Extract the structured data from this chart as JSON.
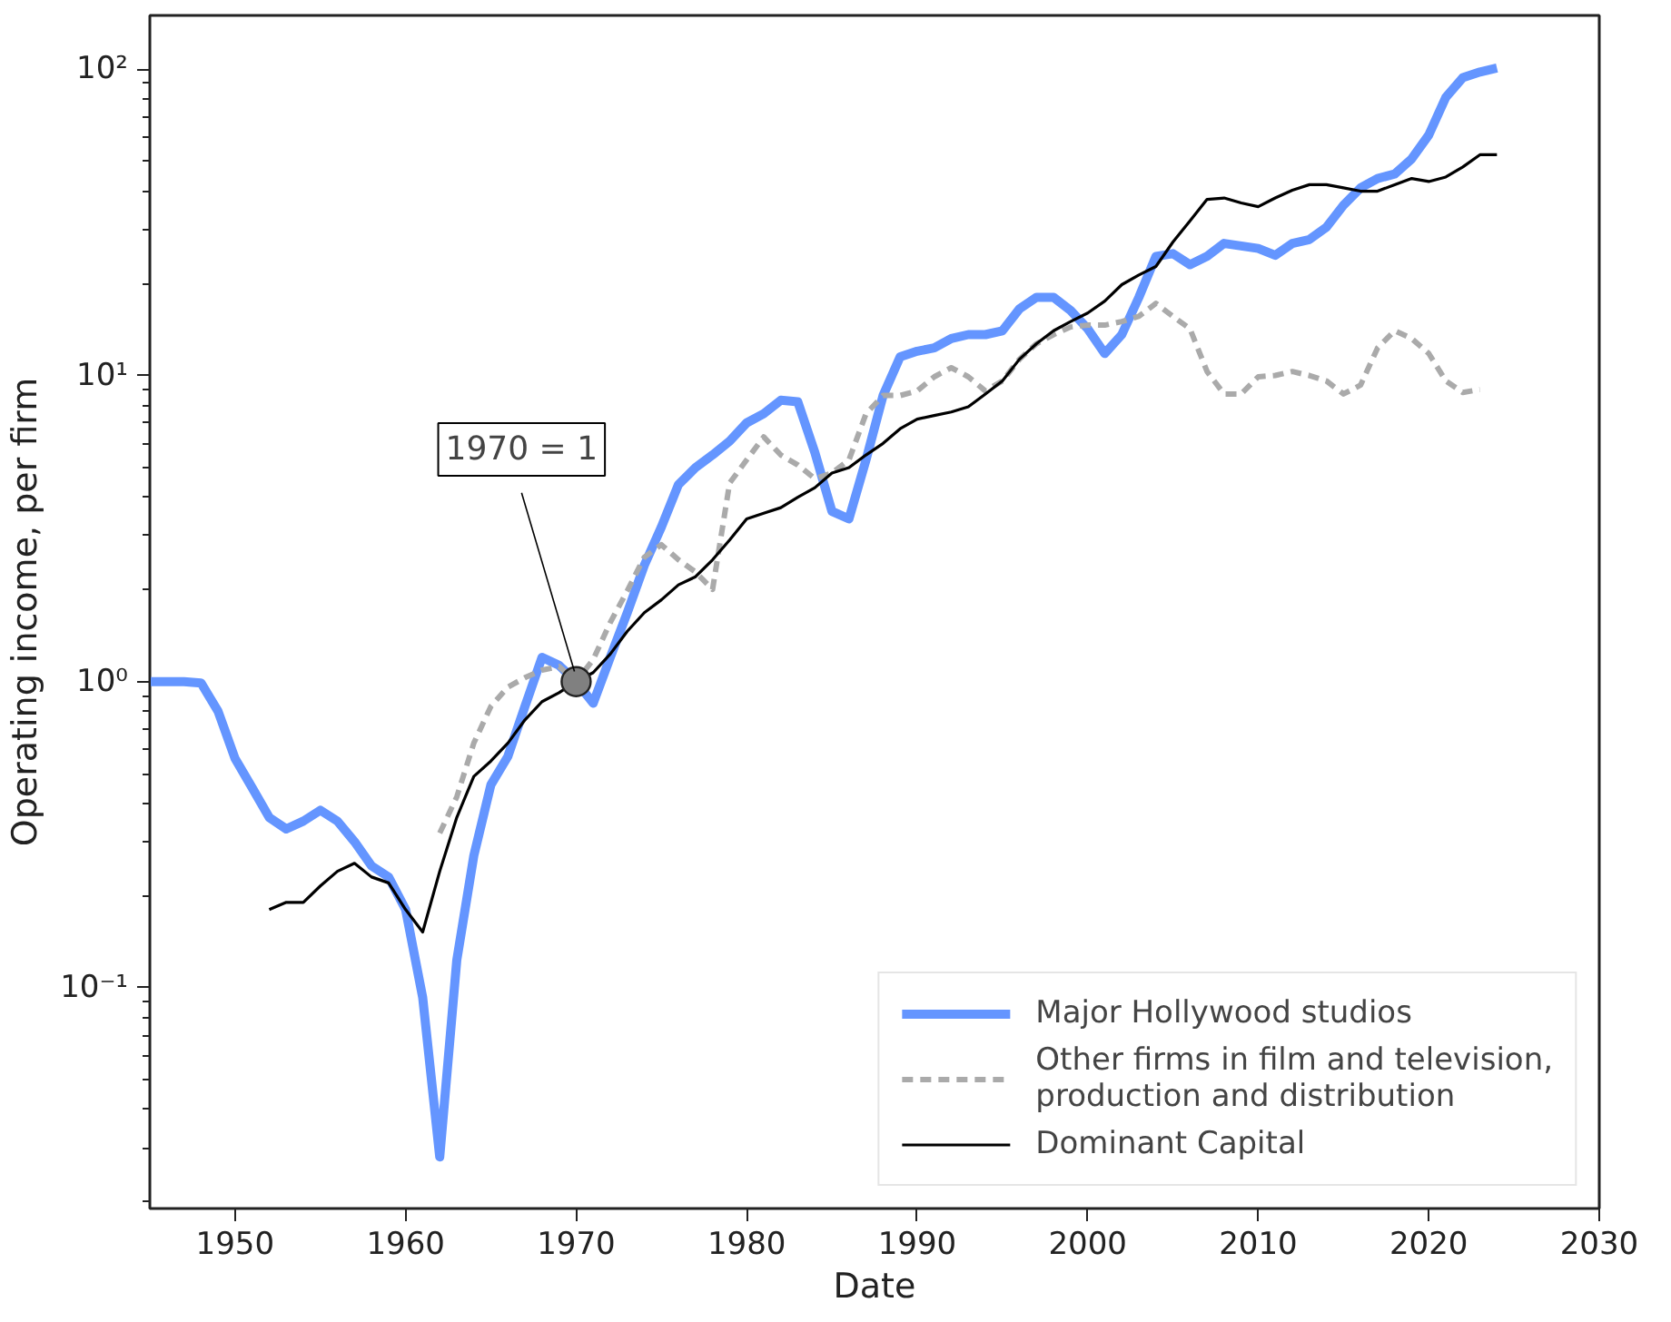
{
  "chart_data": {
    "type": "line",
    "xlabel": "Date",
    "ylabel": "Operating income, per firm",
    "log": true,
    "grid": false,
    "legend": "bottom right",
    "xlim": [
      1945,
      2030
    ],
    "xticks": [
      1950,
      1960,
      1970,
      1980,
      1990,
      2000,
      2010,
      2020,
      2030
    ],
    "ylim": [
      0.019,
      150
    ],
    "yticks": [
      {
        "value": 0.1,
        "label": "10⁻¹"
      },
      {
        "value": 1,
        "label": "10⁰"
      },
      {
        "value": 10,
        "label": "10¹"
      },
      {
        "value": 100,
        "label": "10²"
      }
    ],
    "annotations": [
      {
        "text": "1970 = 1",
        "x": 1970,
        "y": 1
      }
    ],
    "series": [
      {
        "name": "Major Hollywood studios",
        "color": "#6495ff",
        "line_style": "solid",
        "x": [
          1945,
          1946,
          1947,
          1948,
          1949,
          1950,
          1951,
          1952,
          1953,
          1954,
          1955,
          1956,
          1957,
          1958,
          1959,
          1960,
          1961,
          1962,
          1963,
          1964,
          1965,
          1966,
          1967,
          1968,
          1969,
          1970,
          1971,
          1972,
          1973,
          1974,
          1975,
          1976,
          1977,
          1978,
          1979,
          1980,
          1981,
          1982,
          1983,
          1984,
          1985,
          1986,
          1987,
          1988,
          1989,
          1990,
          1991,
          1992,
          1993,
          1994,
          1995,
          1996,
          1997,
          1998,
          1999,
          2000,
          2001,
          2002,
          2003,
          2004,
          2005,
          2006,
          2007,
          2008,
          2009,
          2010,
          2011,
          2012,
          2013,
          2014,
          2015,
          2016,
          2017,
          2018,
          2019,
          2020,
          2021,
          2022,
          2023,
          2024
        ],
        "values": [
          1.0,
          1.0,
          1.0,
          0.99,
          0.8,
          0.56,
          0.45,
          0.36,
          0.33,
          0.35,
          0.38,
          0.35,
          0.3,
          0.25,
          0.23,
          0.18,
          0.093,
          0.028,
          0.123,
          0.27,
          0.46,
          0.57,
          0.83,
          1.2,
          1.13,
          1.0,
          0.85,
          1.2,
          1.68,
          2.4,
          3.2,
          4.4,
          5.0,
          5.5,
          6.1,
          7.0,
          7.5,
          8.3,
          8.2,
          5.6,
          3.6,
          3.4,
          5.3,
          8.6,
          11.5,
          12,
          12.3,
          13.2,
          13.6,
          13.6,
          14,
          16.5,
          18,
          18,
          16.3,
          14.2,
          11.8,
          13.6,
          18,
          24.5,
          25,
          23,
          24.5,
          27,
          26.5,
          26,
          24.7,
          27,
          27.8,
          30.5,
          36,
          41,
          44,
          45.5,
          51,
          61,
          81,
          94,
          98,
          101
        ]
      },
      {
        "name": "Other firms in film and television,\nproduction and distribution",
        "color": "#aaaaaa",
        "line_style": "dashed",
        "x": [
          1962,
          1963,
          1964,
          1965,
          1966,
          1967,
          1968,
          1969,
          1970,
          1971,
          1972,
          1973,
          1974,
          1975,
          1976,
          1977,
          1978,
          1979,
          1980,
          1981,
          1982,
          1983,
          1984,
          1985,
          1986,
          1987,
          1988,
          1989,
          1990,
          1991,
          1992,
          1993,
          1994,
          1995,
          1996,
          1997,
          1998,
          1999,
          2000,
          2001,
          2002,
          2003,
          2004,
          2005,
          2006,
          2007,
          2008,
          2009,
          2010,
          2011,
          2012,
          2013,
          2014,
          2015,
          2016,
          2017,
          2018,
          2019,
          2020,
          2021,
          2022,
          2023
        ],
        "values": [
          0.32,
          0.42,
          0.63,
          0.83,
          0.96,
          1.03,
          1.09,
          1.12,
          1.0,
          1.18,
          1.56,
          1.98,
          2.55,
          2.8,
          2.5,
          2.28,
          2.0,
          4.45,
          5.3,
          6.3,
          5.5,
          5.1,
          4.6,
          4.8,
          5.3,
          7.5,
          8.6,
          8.6,
          8.9,
          9.9,
          10.6,
          9.9,
          8.9,
          9.6,
          11.3,
          12.7,
          13.6,
          14.4,
          14.6,
          14.6,
          15,
          15.6,
          17.2,
          15.6,
          14.2,
          10.3,
          8.7,
          8.7,
          9.9,
          10,
          10.3,
          10,
          9.6,
          8.7,
          9.3,
          12.3,
          14,
          13.2,
          11.8,
          9.6,
          8.8,
          9.0
        ]
      },
      {
        "name": "Dominant Capital",
        "color": "#000000",
        "line_style": "solid",
        "x": [
          1952,
          1953,
          1954,
          1955,
          1956,
          1957,
          1958,
          1959,
          1960,
          1961,
          1962,
          1963,
          1964,
          1965,
          1966,
          1967,
          1968,
          1969,
          1970,
          1971,
          1972,
          1973,
          1974,
          1975,
          1976,
          1977,
          1978,
          1979,
          1980,
          1981,
          1982,
          1983,
          1984,
          1985,
          1986,
          1987,
          1988,
          1989,
          1990,
          1991,
          1992,
          1993,
          1994,
          1995,
          1996,
          1997,
          1998,
          1999,
          2000,
          2001,
          2002,
          2003,
          2004,
          2005,
          2006,
          2007,
          2008,
          2009,
          2010,
          2011,
          2012,
          2013,
          2014,
          2015,
          2016,
          2017,
          2018,
          2019,
          2020,
          2021,
          2022,
          2023,
          2024
        ],
        "values": [
          0.18,
          0.19,
          0.19,
          0.215,
          0.24,
          0.255,
          0.23,
          0.22,
          0.18,
          0.152,
          0.24,
          0.36,
          0.49,
          0.55,
          0.63,
          0.75,
          0.86,
          0.92,
          1.0,
          1.07,
          1.23,
          1.46,
          1.68,
          1.85,
          2.07,
          2.2,
          2.5,
          2.9,
          3.4,
          3.55,
          3.7,
          4.0,
          4.3,
          4.8,
          5.0,
          5.5,
          6.0,
          6.7,
          7.2,
          7.4,
          7.6,
          7.9,
          8.7,
          9.6,
          11.3,
          12.7,
          14,
          15,
          16,
          17.5,
          19.8,
          21.3,
          22.7,
          27.3,
          32,
          37.6,
          38,
          36.6,
          35.6,
          38,
          40.3,
          42,
          42,
          41,
          40,
          40,
          42,
          44,
          43,
          44.5,
          48,
          52.6,
          52.6
        ]
      }
    ]
  }
}
